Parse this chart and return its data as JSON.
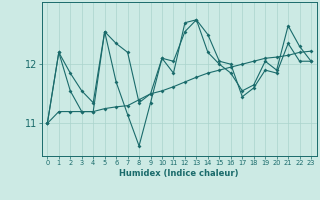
{
  "xlabel": "Humidex (Indice chaleur)",
  "bg_color": "#cceae4",
  "line_color": "#1a6b6b",
  "grid_color": "#aad4cc",
  "series": [
    {
      "x": [
        0,
        1,
        2,
        3,
        4,
        5,
        6,
        7,
        8,
        9,
        10,
        11,
        12,
        13,
        14,
        15,
        16,
        17,
        18,
        19,
        20,
        21,
        22,
        23
      ],
      "y": [
        11.0,
        12.2,
        11.55,
        11.2,
        11.2,
        12.55,
        11.7,
        11.15,
        10.62,
        11.35,
        12.1,
        11.85,
        12.7,
        12.75,
        12.5,
        12.05,
        12.0,
        11.45,
        11.6,
        11.9,
        11.85,
        12.35,
        12.05,
        12.05
      ]
    },
    {
      "x": [
        0,
        1,
        2,
        3,
        4,
        5,
        6,
        7,
        8,
        9,
        10,
        11,
        12,
        13,
        14,
        15,
        16,
        17,
        18,
        19,
        20,
        21,
        22,
        23
      ],
      "y": [
        11.0,
        11.2,
        11.2,
        11.2,
        11.2,
        11.25,
        11.28,
        11.3,
        11.4,
        11.5,
        11.55,
        11.62,
        11.7,
        11.78,
        11.85,
        11.9,
        11.95,
        12.0,
        12.05,
        12.1,
        12.12,
        12.15,
        12.2,
        12.22
      ]
    },
    {
      "x": [
        0,
        1,
        2,
        3,
        4,
        5,
        6,
        7,
        8,
        9,
        10,
        11,
        12,
        13,
        14,
        15,
        16,
        17,
        18,
        19,
        20,
        21,
        22,
        23
      ],
      "y": [
        11.0,
        12.2,
        11.85,
        11.55,
        11.35,
        12.55,
        12.35,
        12.2,
        11.35,
        11.5,
        12.1,
        12.05,
        12.55,
        12.75,
        12.2,
        12.0,
        11.85,
        11.55,
        11.65,
        12.05,
        11.9,
        12.65,
        12.3,
        12.05
      ]
    }
  ],
  "yticks": [
    11,
    12
  ],
  "ylim": [
    10.45,
    13.05
  ],
  "xlim": [
    -0.5,
    23.5
  ],
  "xticks": [
    0,
    1,
    2,
    3,
    4,
    5,
    6,
    7,
    8,
    9,
    10,
    11,
    12,
    13,
    14,
    15,
    16,
    17,
    18,
    19,
    20,
    21,
    22,
    23
  ]
}
